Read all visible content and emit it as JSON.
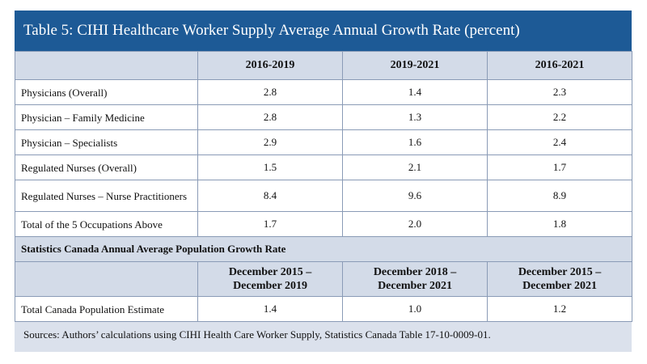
{
  "title": "Table 5: CIHI Healthcare Worker Supply Average Annual Growth Rate (percent)",
  "table1": {
    "columns": [
      "2016-2019",
      "2019-2021",
      "2016-2021"
    ],
    "rows": [
      {
        "label": "Physicians (Overall)",
        "values": [
          "2.8",
          "1.4",
          "2.3"
        ]
      },
      {
        "label": "Physician – Family Medicine",
        "values": [
          "2.8",
          "1.3",
          "2.2"
        ]
      },
      {
        "label": "Physician – Specialists",
        "values": [
          "2.9",
          "1.6",
          "2.4"
        ]
      },
      {
        "label": "Regulated Nurses (Overall)",
        "values": [
          "1.5",
          "2.1",
          "1.7"
        ]
      },
      {
        "label": "Regulated Nurses – Nurse Practitioners",
        "values": [
          "8.4",
          "9.6",
          "8.9"
        ]
      },
      {
        "label": "Total of the 5 Occupations Above",
        "values": [
          "1.7",
          "2.0",
          "1.8"
        ]
      }
    ]
  },
  "section_heading": "Statistics Canada Annual Average Population Growth Rate",
  "table2": {
    "columns": [
      {
        "line1": "December 2015 –",
        "line2": "December 2019"
      },
      {
        "line1": "December 2018 –",
        "line2": "December 2021"
      },
      {
        "line1": "December 2015 –",
        "line2": "December 2021"
      }
    ],
    "rows": [
      {
        "label": "Total Canada Population Estimate",
        "values": [
          "1.4",
          "1.0",
          "1.2"
        ]
      }
    ]
  },
  "sources": "Sources: Authors’ calculations using CIHI Health Care Worker Supply, Statistics Canada Table 17-10-0009-01."
}
